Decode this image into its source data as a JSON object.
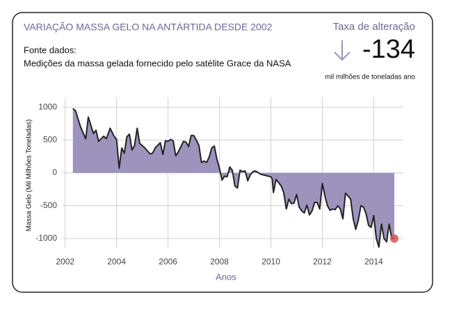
{
  "source": {
    "label": "Fonte dados:",
    "text": "Medições da massa gelada fornecido pelo satélite Grace da NASA"
  },
  "indicator": {
    "label": "Taxa de alteração",
    "value": -134,
    "unit": "mil milhões de toneladas ano"
  },
  "chart_data": {
    "type": "area",
    "title": "VARIAÇÃO MASSA GELO NA ANTÁRTIDA DESDE 2002",
    "x_label": "Anos",
    "y_label": "Massa Gelo (Mil Milhões Toneladas)",
    "xlim": [
      2001.9,
      2015.15
    ],
    "xticks": [
      2002,
      2004,
      2006,
      2008,
      2010,
      2012,
      2014
    ],
    "ylim": [
      -1150,
      1150
    ],
    "yticks": [
      -1000,
      -500,
      0,
      500,
      1000
    ],
    "grid": true,
    "fill_color": "#9d93bd",
    "line_color": "#222222",
    "last_point_color": "#d9534f",
    "x": [
      2002.3,
      2002.4,
      2002.6,
      2002.8,
      2002.9,
      2003.1,
      2003.2,
      2003.3,
      2003.5,
      2003.6,
      2003.75,
      2003.9,
      2004.0,
      2004.1,
      2004.2,
      2004.3,
      2004.4,
      2004.5,
      2004.6,
      2004.7,
      2004.8,
      2004.9,
      2005.1,
      2005.3,
      2005.4,
      2005.5,
      2005.6,
      2005.7,
      2005.8,
      2005.9,
      2006.0,
      2006.1,
      2006.2,
      2006.3,
      2006.4,
      2006.5,
      2006.6,
      2006.7,
      2006.8,
      2006.9,
      2007.0,
      2007.1,
      2007.2,
      2007.3,
      2007.4,
      2007.5,
      2007.6,
      2007.7,
      2007.8,
      2007.9,
      2008.0,
      2008.1,
      2008.2,
      2008.3,
      2008.4,
      2008.5,
      2008.6,
      2008.7,
      2008.8,
      2008.9,
      2009.0,
      2009.1,
      2009.2,
      2009.3,
      2009.4,
      2009.6,
      2009.8,
      2010.0,
      2010.05,
      2010.1,
      2010.2,
      2010.3,
      2010.4,
      2010.5,
      2010.6,
      2010.7,
      2010.8,
      2010.9,
      2011.0,
      2011.1,
      2011.2,
      2011.3,
      2011.4,
      2011.5,
      2011.6,
      2011.7,
      2011.8,
      2011.9,
      2012.0,
      2012.1,
      2012.2,
      2012.3,
      2012.4,
      2012.5,
      2012.6,
      2012.7,
      2012.8,
      2012.9,
      2013.0,
      2013.1,
      2013.2,
      2013.3,
      2013.4,
      2013.5,
      2013.6,
      2013.7,
      2013.8,
      2013.9,
      2014.0,
      2014.1,
      2014.2,
      2014.3,
      2014.4,
      2014.5,
      2014.6,
      2014.7,
      2014.8
    ],
    "values": [
      980,
      950,
      700,
      520,
      850,
      600,
      650,
      480,
      560,
      520,
      680,
      560,
      510,
      70,
      380,
      300,
      550,
      590,
      350,
      420,
      680,
      450,
      380,
      290,
      300,
      380,
      420,
      460,
      280,
      490,
      480,
      510,
      490,
      260,
      320,
      400,
      480,
      470,
      400,
      570,
      570,
      500,
      420,
      160,
      180,
      160,
      240,
      380,
      410,
      210,
      70,
      -110,
      -50,
      -60,
      90,
      40,
      -200,
      -230,
      40,
      20,
      30,
      -120,
      -30,
      20,
      30,
      -20,
      -40,
      -60,
      -90,
      -300,
      -100,
      -150,
      -200,
      -300,
      -550,
      -400,
      -470,
      -460,
      -330,
      -520,
      -580,
      -610,
      -490,
      -640,
      -580,
      -450,
      -450,
      -550,
      -160,
      -350,
      -500,
      -570,
      -550,
      -560,
      -500,
      -550,
      -700,
      -310,
      -350,
      -400,
      -700,
      -860,
      -720,
      -500,
      -520,
      -620,
      -800,
      -830,
      -650,
      -1000,
      -1130,
      -780,
      -1000,
      -1050,
      -780,
      -1000,
      -1000
    ]
  }
}
